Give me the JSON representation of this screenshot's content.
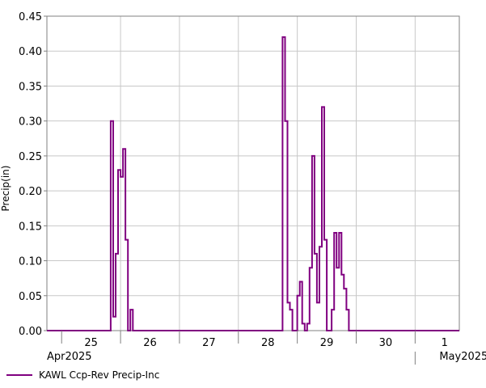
{
  "chart_data": {
    "type": "line",
    "step": true,
    "title": "",
    "xlabel": "",
    "ylabel": "Precip(in)",
    "ylim": [
      0,
      0.45
    ],
    "yticks": [
      "0.00",
      "0.05",
      "0.10",
      "0.15",
      "0.20",
      "0.25",
      "0.30",
      "0.35",
      "0.40",
      "0.45"
    ],
    "xlim": [
      "2025-04-24T18:00",
      "2025-05-01T18:00"
    ],
    "xticks": [
      {
        "label": "25",
        "t": "2025-04-25"
      },
      {
        "label": "26",
        "t": "2025-04-26"
      },
      {
        "label": "27",
        "t": "2025-04-27"
      },
      {
        "label": "28",
        "t": "2025-04-28"
      },
      {
        "label": "29",
        "t": "2025-04-29"
      },
      {
        "label": "30",
        "t": "2025-04-30"
      },
      {
        "label": "1",
        "t": "2025-05-01"
      }
    ],
    "month_labels": [
      {
        "label": "Apr2025",
        "t": "2025-04-24T18:00"
      },
      {
        "label": "May2025",
        "t": "2025-05-01T00:00"
      }
    ],
    "grid": true,
    "legend_position": "bottom-left",
    "series": [
      {
        "name": "KAWL Ccp-Rev Precip-Inc",
        "color": "#800080",
        "points": [
          [
            "2025-04-24T18:00",
            0
          ],
          [
            "2025-04-25T19:00",
            0
          ],
          [
            "2025-04-25T20:00",
            0.3
          ],
          [
            "2025-04-25T21:00",
            0.02
          ],
          [
            "2025-04-25T22:00",
            0.11
          ],
          [
            "2025-04-25T23:00",
            0.23
          ],
          [
            "2025-04-26T00:00",
            0.22
          ],
          [
            "2025-04-26T01:00",
            0.26
          ],
          [
            "2025-04-26T02:00",
            0.13
          ],
          [
            "2025-04-26T03:00",
            0
          ],
          [
            "2025-04-26T04:00",
            0.03
          ],
          [
            "2025-04-26T05:00",
            0
          ],
          [
            "2025-04-28T17:00",
            0
          ],
          [
            "2025-04-28T18:00",
            0.42
          ],
          [
            "2025-04-28T19:00",
            0.3
          ],
          [
            "2025-04-28T20:00",
            0.04
          ],
          [
            "2025-04-28T21:00",
            0.03
          ],
          [
            "2025-04-28T22:00",
            0
          ],
          [
            "2025-04-29T00:00",
            0.05
          ],
          [
            "2025-04-29T01:00",
            0.07
          ],
          [
            "2025-04-29T02:00",
            0.01
          ],
          [
            "2025-04-29T03:00",
            0
          ],
          [
            "2025-04-29T04:00",
            0.01
          ],
          [
            "2025-04-29T05:00",
            0.09
          ],
          [
            "2025-04-29T06:00",
            0.25
          ],
          [
            "2025-04-29T07:00",
            0.11
          ],
          [
            "2025-04-29T08:00",
            0.04
          ],
          [
            "2025-04-29T09:00",
            0.12
          ],
          [
            "2025-04-29T10:00",
            0.32
          ],
          [
            "2025-04-29T11:00",
            0.13
          ],
          [
            "2025-04-29T12:00",
            0
          ],
          [
            "2025-04-29T14:00",
            0.03
          ],
          [
            "2025-04-29T15:00",
            0.14
          ],
          [
            "2025-04-29T16:00",
            0.09
          ],
          [
            "2025-04-29T17:00",
            0.14
          ],
          [
            "2025-04-29T18:00",
            0.08
          ],
          [
            "2025-04-29T19:00",
            0.06
          ],
          [
            "2025-04-29T20:00",
            0.03
          ],
          [
            "2025-04-29T21:00",
            0
          ],
          [
            "2025-05-01T18:00",
            0
          ]
        ]
      }
    ]
  }
}
